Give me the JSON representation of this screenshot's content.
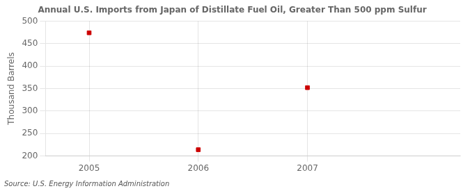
{
  "chart_data": {
    "type": "scatter",
    "title": "Annual U.S. Imports from Japan of Distillate Fuel Oil, Greater Than 500 ppm Sulfur",
    "ylabel": "Thousand Barrels",
    "annotations": [
      "Source: U.S. Energy Information Administration"
    ],
    "x": [
      2005,
      2006,
      2007
    ],
    "values": [
      474,
      214,
      352
    ],
    "color": "#cc0000",
    "marker": "square",
    "xlim": [
      2004.6,
      2008.4
    ],
    "xticks": [
      2005,
      2006,
      2007
    ],
    "ylim": [
      200,
      500
    ],
    "yticks": [
      200,
      250,
      300,
      350,
      400,
      450,
      500
    ],
    "grid": true
  }
}
